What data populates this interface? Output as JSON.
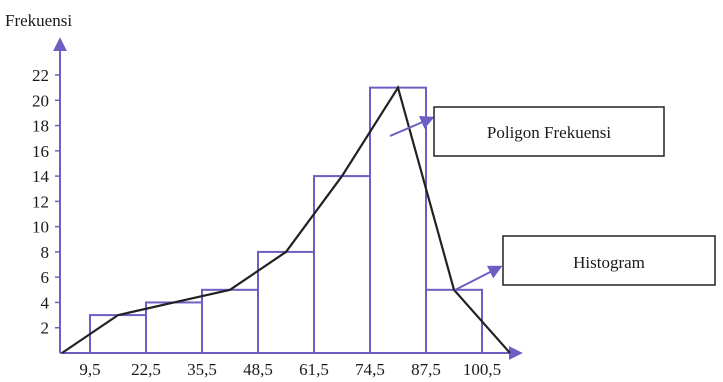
{
  "chart_data": {
    "type": "bar",
    "ylabel": "Frekuensi",
    "xlabel": "",
    "class_boundaries": [
      9.5,
      22.5,
      35.5,
      48.5,
      61.5,
      74.5,
      87.5,
      100.5
    ],
    "x_tick_labels": [
      "9,5",
      "22,5",
      "35,5",
      "48,5",
      "61,5",
      "74,5",
      "87,5",
      "100,5"
    ],
    "y_ticks": [
      2,
      4,
      6,
      8,
      10,
      12,
      14,
      16,
      18,
      20,
      22
    ],
    "ylim": [
      0,
      23
    ],
    "bars": [
      {
        "from": 9.5,
        "to": 22.5,
        "value": 3
      },
      {
        "from": 22.5,
        "to": 35.5,
        "value": 4
      },
      {
        "from": 35.5,
        "to": 48.5,
        "value": 5
      },
      {
        "from": 48.5,
        "to": 61.5,
        "value": 8
      },
      {
        "from": 61.5,
        "to": 74.5,
        "value": 14
      },
      {
        "from": 74.5,
        "to": 87.5,
        "value": 21
      },
      {
        "from": 87.5,
        "to": 100.5,
        "value": 5
      }
    ],
    "polygon": {
      "x": [
        3,
        16,
        29,
        42,
        55,
        68,
        81,
        94,
        107
      ],
      "y": [
        0,
        3,
        4,
        5,
        8,
        14,
        21,
        5,
        0
      ]
    },
    "annotations": [
      "Poligon Frekuensi",
      "Histogram"
    ],
    "grid": false,
    "colors": {
      "bar_edge": "#6b5fc4",
      "axis": "#6b5fc4",
      "polygon": "#222222"
    }
  }
}
